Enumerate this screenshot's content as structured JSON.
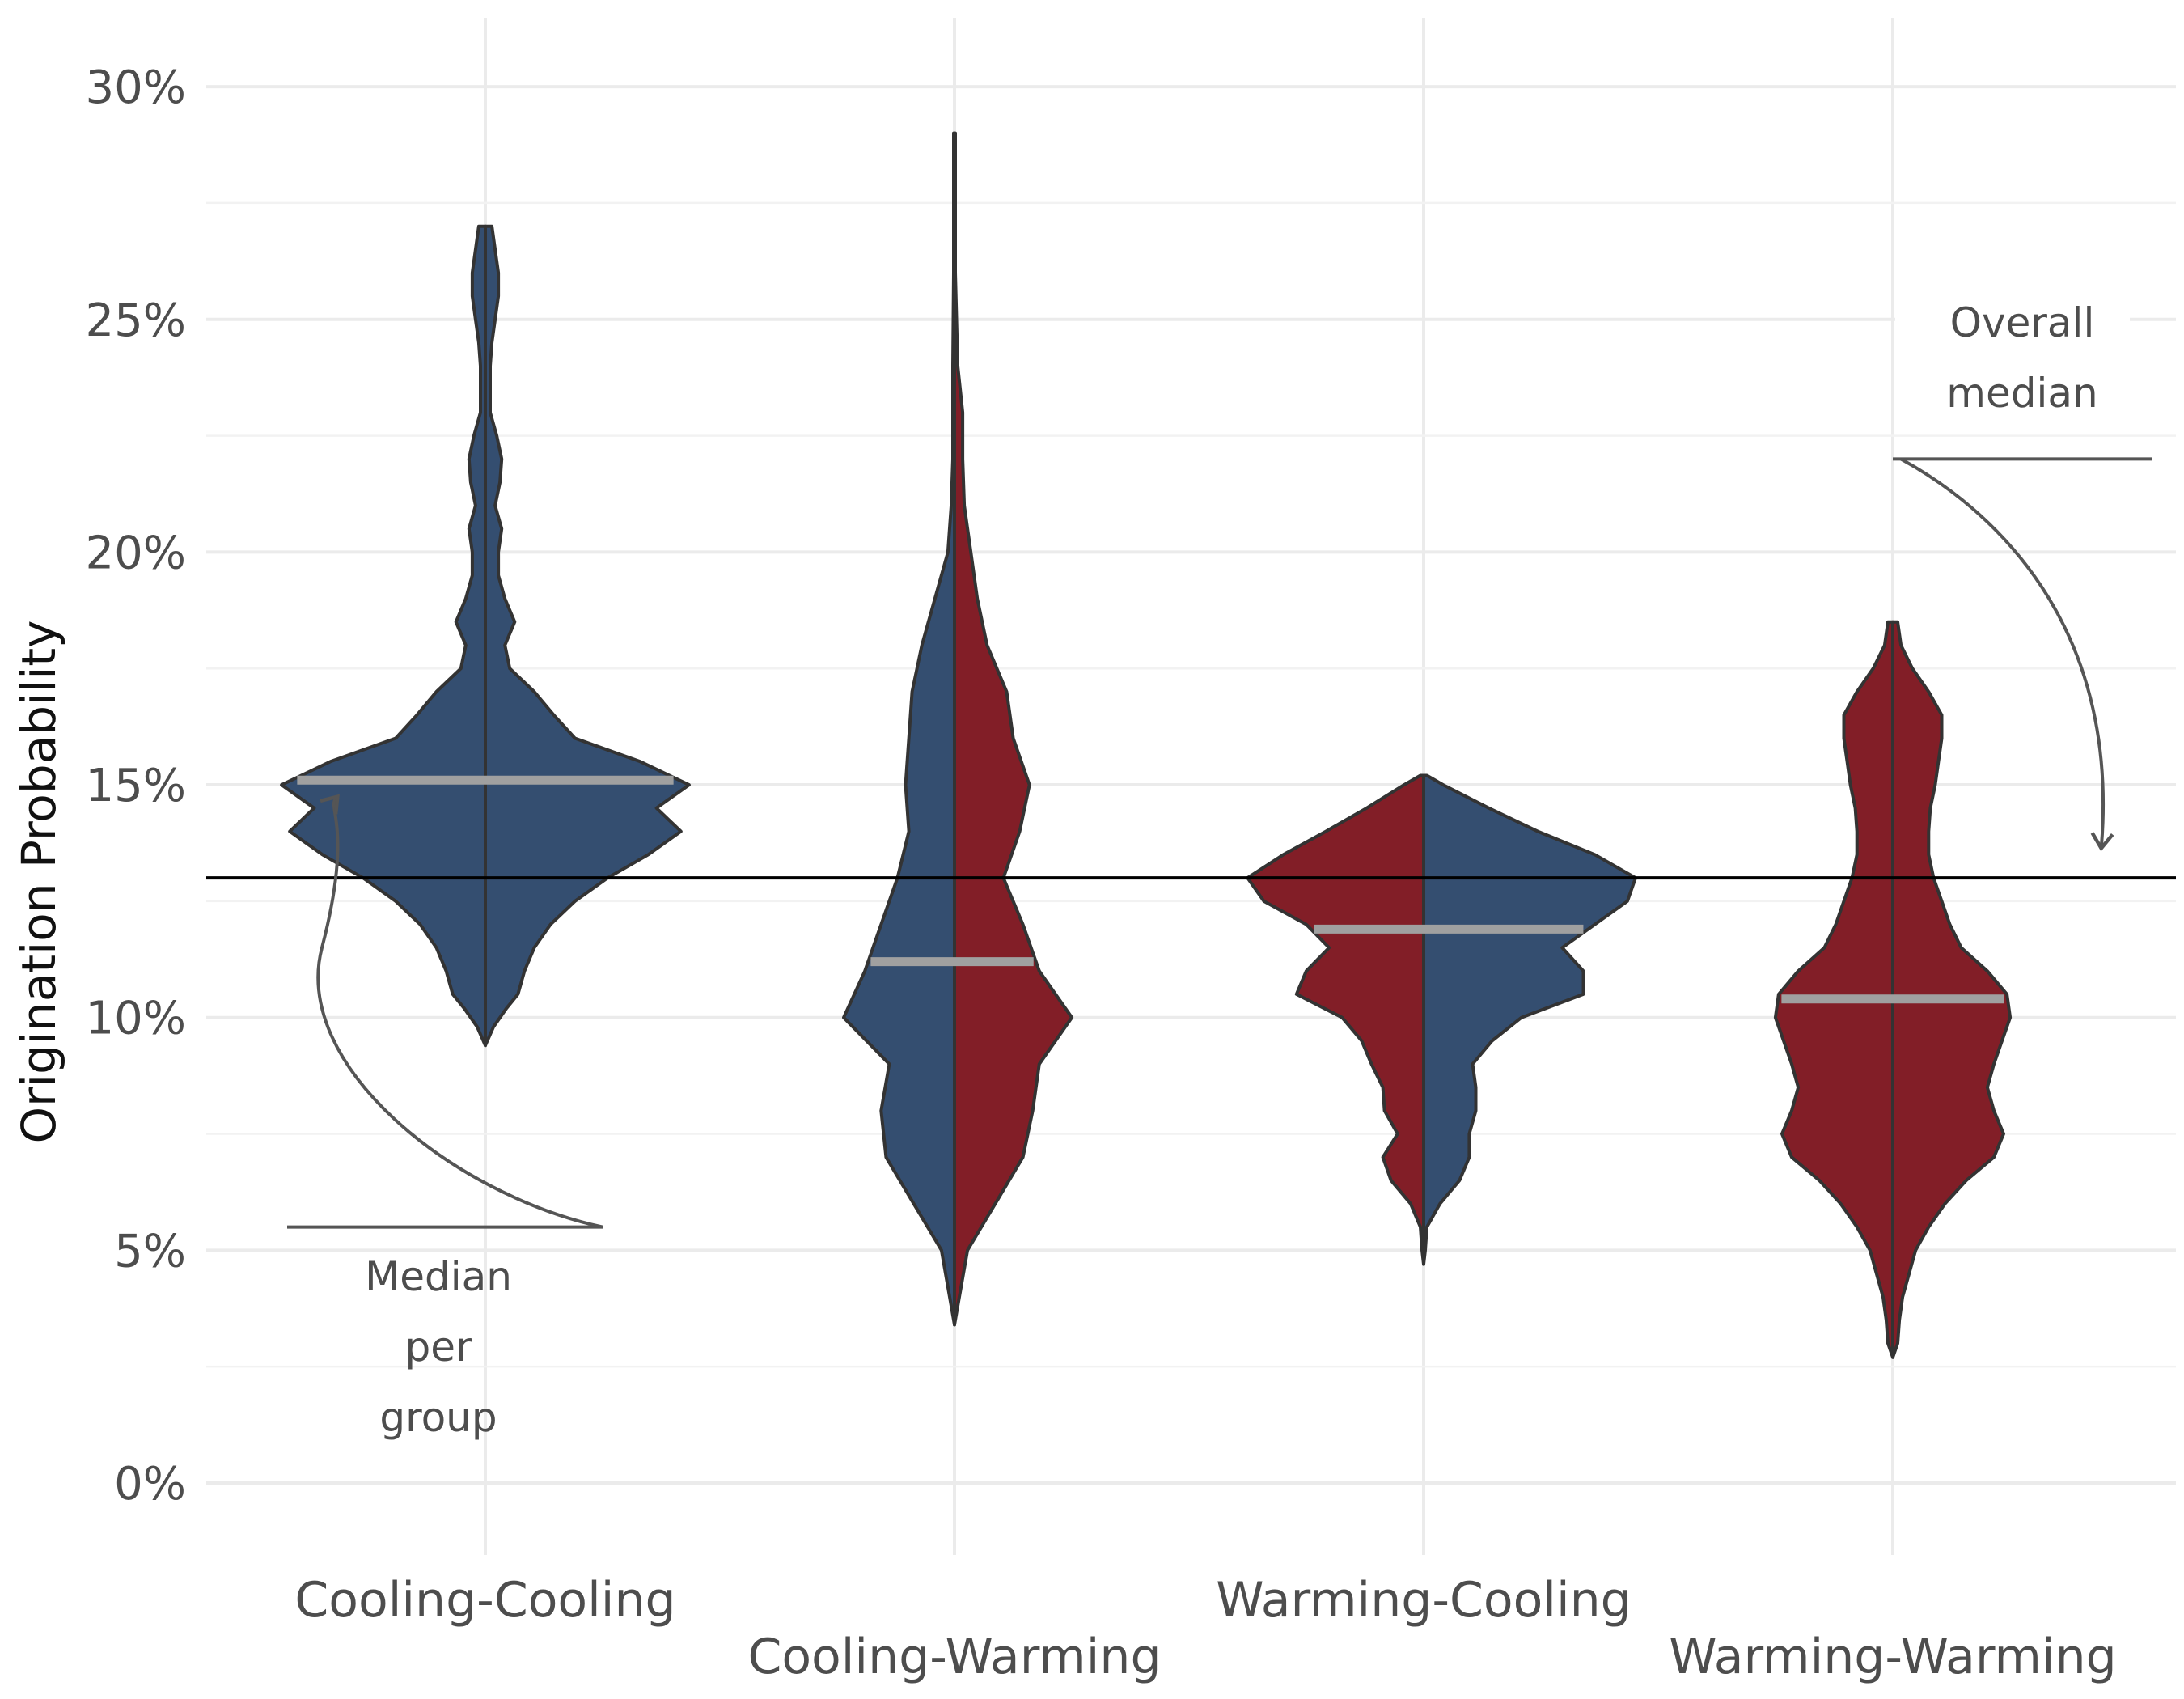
{
  "chart_data": {
    "type": "violin",
    "ylabel": "Origination Probability",
    "ylim": [
      -0.015,
      0.315
    ],
    "yticks": [
      0,
      0.05,
      0.1,
      0.15,
      0.2,
      0.25,
      0.3
    ],
    "ytick_labels": [
      "0%",
      "5%",
      "10%",
      "15%",
      "20%",
      "25%",
      "30%"
    ],
    "grid": true,
    "overall_median": 0.13,
    "colors": {
      "cooling": "#344E70",
      "warming": "#821E27",
      "median_line": "#a0a0a0",
      "overall_line": "#000000",
      "annotation": "#555555"
    },
    "annotations": {
      "group_median_lines": [
        "Median",
        "per",
        "group"
      ],
      "overall_median_lines": [
        "Overall",
        "median"
      ]
    },
    "groups": [
      {
        "name": "Cooling-Cooling",
        "median": 0.151,
        "left_color": "cooling",
        "right_color": "cooling",
        "left_profile": [
          [
            0.094,
            0
          ],
          [
            0.098,
            0.05
          ],
          [
            0.102,
            0.13
          ],
          [
            0.105,
            0.2
          ],
          [
            0.11,
            0.24
          ],
          [
            0.115,
            0.3
          ],
          [
            0.12,
            0.4
          ],
          [
            0.125,
            0.55
          ],
          [
            0.13,
            0.75
          ],
          [
            0.135,
            1.0
          ],
          [
            0.14,
            1.2
          ],
          [
            0.145,
            1.05
          ],
          [
            0.15,
            1.25
          ],
          [
            0.155,
            0.95
          ],
          [
            0.16,
            0.55
          ],
          [
            0.165,
            0.42
          ],
          [
            0.17,
            0.3
          ],
          [
            0.175,
            0.15
          ],
          [
            0.18,
            0.12
          ],
          [
            0.185,
            0.18
          ],
          [
            0.19,
            0.12
          ],
          [
            0.195,
            0.08
          ],
          [
            0.2,
            0.08
          ],
          [
            0.205,
            0.1
          ],
          [
            0.21,
            0.06
          ],
          [
            0.215,
            0.09
          ],
          [
            0.22,
            0.1
          ],
          [
            0.225,
            0.07
          ],
          [
            0.23,
            0.03
          ],
          [
            0.235,
            0.03
          ],
          [
            0.24,
            0.03
          ],
          [
            0.245,
            0.04
          ],
          [
            0.25,
            0.06
          ],
          [
            0.255,
            0.08
          ],
          [
            0.26,
            0.08
          ],
          [
            0.265,
            0.06
          ],
          [
            0.27,
            0.04
          ],
          [
            0.27,
            0
          ]
        ],
        "right_profile": [
          [
            0.094,
            0
          ],
          [
            0.098,
            0.05
          ],
          [
            0.102,
            0.13
          ],
          [
            0.105,
            0.2
          ],
          [
            0.11,
            0.24
          ],
          [
            0.115,
            0.3
          ],
          [
            0.12,
            0.4
          ],
          [
            0.125,
            0.55
          ],
          [
            0.13,
            0.75
          ],
          [
            0.135,
            1.0
          ],
          [
            0.14,
            1.2
          ],
          [
            0.145,
            1.05
          ],
          [
            0.15,
            1.25
          ],
          [
            0.155,
            0.95
          ],
          [
            0.16,
            0.55
          ],
          [
            0.165,
            0.42
          ],
          [
            0.17,
            0.3
          ],
          [
            0.175,
            0.15
          ],
          [
            0.18,
            0.12
          ],
          [
            0.185,
            0.18
          ],
          [
            0.19,
            0.12
          ],
          [
            0.195,
            0.08
          ],
          [
            0.2,
            0.08
          ],
          [
            0.205,
            0.1
          ],
          [
            0.21,
            0.06
          ],
          [
            0.215,
            0.09
          ],
          [
            0.22,
            0.1
          ],
          [
            0.225,
            0.07
          ],
          [
            0.23,
            0.03
          ],
          [
            0.235,
            0.03
          ],
          [
            0.24,
            0.03
          ],
          [
            0.245,
            0.04
          ],
          [
            0.25,
            0.06
          ],
          [
            0.255,
            0.08
          ],
          [
            0.26,
            0.08
          ],
          [
            0.265,
            0.06
          ],
          [
            0.27,
            0.04
          ],
          [
            0.27,
            0
          ]
        ]
      },
      {
        "name": "Cooling-Warming",
        "median": 0.112,
        "left_color": "cooling",
        "right_color": "warming",
        "left_profile": [
          [
            0.034,
            0
          ],
          [
            0.04,
            0.03
          ],
          [
            0.05,
            0.08
          ],
          [
            0.06,
            0.25
          ],
          [
            0.07,
            0.42
          ],
          [
            0.08,
            0.45
          ],
          [
            0.09,
            0.4
          ],
          [
            0.1,
            0.68
          ],
          [
            0.11,
            0.55
          ],
          [
            0.12,
            0.45
          ],
          [
            0.13,
            0.35
          ],
          [
            0.14,
            0.28
          ],
          [
            0.15,
            0.3
          ],
          [
            0.16,
            0.28
          ],
          [
            0.17,
            0.26
          ],
          [
            0.18,
            0.2
          ],
          [
            0.19,
            0.12
          ],
          [
            0.2,
            0.04
          ],
          [
            0.21,
            0.02
          ],
          [
            0.22,
            0.01
          ],
          [
            0.24,
            0.01
          ],
          [
            0.26,
            0.005
          ],
          [
            0.29,
            0.005
          ],
          [
            0.29,
            0
          ]
        ],
        "right_profile": [
          [
            0.034,
            0
          ],
          [
            0.04,
            0.03
          ],
          [
            0.05,
            0.08
          ],
          [
            0.06,
            0.25
          ],
          [
            0.07,
            0.42
          ],
          [
            0.08,
            0.48
          ],
          [
            0.09,
            0.52
          ],
          [
            0.1,
            0.72
          ],
          [
            0.11,
            0.52
          ],
          [
            0.12,
            0.42
          ],
          [
            0.13,
            0.3
          ],
          [
            0.14,
            0.4
          ],
          [
            0.15,
            0.46
          ],
          [
            0.16,
            0.36
          ],
          [
            0.17,
            0.32
          ],
          [
            0.18,
            0.2
          ],
          [
            0.19,
            0.14
          ],
          [
            0.2,
            0.1
          ],
          [
            0.21,
            0.06
          ],
          [
            0.22,
            0.05
          ],
          [
            0.23,
            0.05
          ],
          [
            0.24,
            0.02
          ],
          [
            0.26,
            0.005
          ],
          [
            0.29,
            0.005
          ],
          [
            0.29,
            0
          ]
        ]
      },
      {
        "name": "Warming-Cooling",
        "median": 0.119,
        "left_color": "warming",
        "right_color": "cooling",
        "left_profile": [
          [
            0.047,
            0
          ],
          [
            0.05,
            0.01
          ],
          [
            0.055,
            0.02
          ],
          [
            0.06,
            0.08
          ],
          [
            0.065,
            0.2
          ],
          [
            0.07,
            0.25
          ],
          [
            0.075,
            0.16
          ],
          [
            0.08,
            0.24
          ],
          [
            0.085,
            0.25
          ],
          [
            0.09,
            0.32
          ],
          [
            0.095,
            0.38
          ],
          [
            0.1,
            0.5
          ],
          [
            0.105,
            0.78
          ],
          [
            0.11,
            0.72
          ],
          [
            0.115,
            0.58
          ],
          [
            0.12,
            0.72
          ],
          [
            0.125,
            0.98
          ],
          [
            0.13,
            1.08
          ],
          [
            0.135,
            0.86
          ],
          [
            0.14,
            0.6
          ],
          [
            0.145,
            0.35
          ],
          [
            0.15,
            0.12
          ],
          [
            0.152,
            0.02
          ],
          [
            0.152,
            0
          ]
        ],
        "right_profile": [
          [
            0.047,
            0
          ],
          [
            0.05,
            0.01
          ],
          [
            0.055,
            0.02
          ],
          [
            0.06,
            0.1
          ],
          [
            0.065,
            0.22
          ],
          [
            0.07,
            0.28
          ],
          [
            0.075,
            0.28
          ],
          [
            0.08,
            0.32
          ],
          [
            0.085,
            0.32
          ],
          [
            0.09,
            0.3
          ],
          [
            0.095,
            0.42
          ],
          [
            0.1,
            0.6
          ],
          [
            0.105,
            0.98
          ],
          [
            0.11,
            0.98
          ],
          [
            0.115,
            0.85
          ],
          [
            0.12,
            1.05
          ],
          [
            0.125,
            1.25
          ],
          [
            0.13,
            1.3
          ],
          [
            0.135,
            1.05
          ],
          [
            0.14,
            0.7
          ],
          [
            0.145,
            0.4
          ],
          [
            0.15,
            0.12
          ],
          [
            0.152,
            0.02
          ],
          [
            0.152,
            0
          ]
        ]
      },
      {
        "name": "Warming-Warming",
        "median": 0.104,
        "left_color": "warming",
        "right_color": "warming",
        "left_profile": [
          [
            0.027,
            0
          ],
          [
            0.03,
            0.03
          ],
          [
            0.035,
            0.04
          ],
          [
            0.04,
            0.06
          ],
          [
            0.045,
            0.1
          ],
          [
            0.05,
            0.14
          ],
          [
            0.055,
            0.22
          ],
          [
            0.06,
            0.32
          ],
          [
            0.065,
            0.45
          ],
          [
            0.07,
            0.62
          ],
          [
            0.075,
            0.68
          ],
          [
            0.08,
            0.62
          ],
          [
            0.085,
            0.58
          ],
          [
            0.09,
            0.62
          ],
          [
            0.095,
            0.67
          ],
          [
            0.1,
            0.72
          ],
          [
            0.105,
            0.7
          ],
          [
            0.11,
            0.58
          ],
          [
            0.115,
            0.42
          ],
          [
            0.12,
            0.35
          ],
          [
            0.125,
            0.3
          ],
          [
            0.13,
            0.25
          ],
          [
            0.135,
            0.22
          ],
          [
            0.14,
            0.22
          ],
          [
            0.145,
            0.23
          ],
          [
            0.15,
            0.26
          ],
          [
            0.155,
            0.28
          ],
          [
            0.16,
            0.3
          ],
          [
            0.165,
            0.3
          ],
          [
            0.17,
            0.22
          ],
          [
            0.175,
            0.12
          ],
          [
            0.18,
            0.05
          ],
          [
            0.185,
            0.03
          ],
          [
            0.185,
            0
          ]
        ],
        "right_profile": [
          [
            0.027,
            0
          ],
          [
            0.03,
            0.03
          ],
          [
            0.035,
            0.04
          ],
          [
            0.04,
            0.06
          ],
          [
            0.045,
            0.1
          ],
          [
            0.05,
            0.14
          ],
          [
            0.055,
            0.22
          ],
          [
            0.06,
            0.32
          ],
          [
            0.065,
            0.45
          ],
          [
            0.07,
            0.62
          ],
          [
            0.075,
            0.68
          ],
          [
            0.08,
            0.62
          ],
          [
            0.085,
            0.58
          ],
          [
            0.09,
            0.62
          ],
          [
            0.095,
            0.67
          ],
          [
            0.1,
            0.72
          ],
          [
            0.105,
            0.7
          ],
          [
            0.11,
            0.58
          ],
          [
            0.115,
            0.42
          ],
          [
            0.12,
            0.35
          ],
          [
            0.125,
            0.3
          ],
          [
            0.13,
            0.25
          ],
          [
            0.135,
            0.22
          ],
          [
            0.14,
            0.22
          ],
          [
            0.145,
            0.23
          ],
          [
            0.15,
            0.26
          ],
          [
            0.155,
            0.28
          ],
          [
            0.16,
            0.3
          ],
          [
            0.165,
            0.3
          ],
          [
            0.17,
            0.22
          ],
          [
            0.175,
            0.12
          ],
          [
            0.18,
            0.05
          ],
          [
            0.185,
            0.03
          ],
          [
            0.185,
            0
          ]
        ]
      }
    ]
  }
}
